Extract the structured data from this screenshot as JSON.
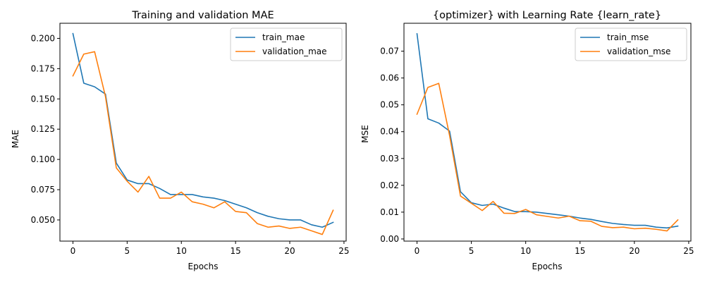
{
  "chart_data": [
    {
      "type": "line",
      "title": "Training and validation MAE",
      "xlabel": "Epochs",
      "ylabel": "MAE",
      "xlim": [
        -1.2,
        25.2
      ],
      "ylim": [
        0.0325,
        0.2125
      ],
      "xticks": [
        0,
        5,
        10,
        15,
        20,
        25
      ],
      "xtick_labels": [
        "0",
        "5",
        "10",
        "15",
        "20",
        "25"
      ],
      "yticks": [
        0.05,
        0.075,
        0.1,
        0.125,
        0.15,
        0.175,
        0.2
      ],
      "ytick_labels": [
        "0.050",
        "0.075",
        "0.100",
        "0.125",
        "0.150",
        "0.175",
        "0.200"
      ],
      "legend_position": "top-right",
      "grid": false,
      "x": [
        0,
        1,
        2,
        3,
        4,
        5,
        6,
        7,
        8,
        9,
        10,
        11,
        12,
        13,
        14,
        15,
        16,
        17,
        18,
        19,
        20,
        21,
        22,
        23,
        24
      ],
      "series": [
        {
          "name": "train_mae",
          "color": "#1f77b4",
          "values": [
            0.204,
            0.163,
            0.16,
            0.154,
            0.097,
            0.083,
            0.08,
            0.08,
            0.076,
            0.071,
            0.071,
            0.071,
            0.069,
            0.068,
            0.066,
            0.063,
            0.06,
            0.056,
            0.053,
            0.051,
            0.05,
            0.05,
            0.046,
            0.044,
            0.048
          ]
        },
        {
          "name": "validation_mae",
          "color": "#ff7f0e",
          "values": [
            0.169,
            0.187,
            0.189,
            0.152,
            0.093,
            0.082,
            0.073,
            0.086,
            0.068,
            0.068,
            0.073,
            0.065,
            0.063,
            0.06,
            0.065,
            0.057,
            0.056,
            0.047,
            0.044,
            0.045,
            0.043,
            0.044,
            0.041,
            0.038,
            0.058
          ]
        }
      ]
    },
    {
      "type": "line",
      "title": "{optimizer} with Learning Rate  {learn_rate}",
      "xlabel": "Epochs",
      "ylabel": "MSE",
      "xlim": [
        -1.2,
        25.2
      ],
      "ylim": [
        -0.0008,
        0.0804
      ],
      "xticks": [
        0,
        5,
        10,
        15,
        20,
        25
      ],
      "xtick_labels": [
        "0",
        "5",
        "10",
        "15",
        "20",
        "25"
      ],
      "yticks": [
        0.0,
        0.01,
        0.02,
        0.03,
        0.04,
        0.05,
        0.06,
        0.07
      ],
      "ytick_labels": [
        "0.00",
        "0.01",
        "0.02",
        "0.03",
        "0.04",
        "0.05",
        "0.06",
        "0.07"
      ],
      "legend_position": "top-right",
      "grid": false,
      "x": [
        0,
        1,
        2,
        3,
        4,
        5,
        6,
        7,
        8,
        9,
        10,
        11,
        12,
        13,
        14,
        15,
        16,
        17,
        18,
        19,
        20,
        21,
        22,
        23,
        24
      ],
      "series": [
        {
          "name": "train_mse",
          "color": "#1f77b4",
          "values": [
            0.0765,
            0.0448,
            0.0432,
            0.0402,
            0.0176,
            0.0135,
            0.0125,
            0.013,
            0.0115,
            0.0102,
            0.0102,
            0.01,
            0.0095,
            0.009,
            0.0085,
            0.0078,
            0.0073,
            0.0065,
            0.0058,
            0.0054,
            0.0051,
            0.0051,
            0.0044,
            0.0041,
            0.0048
          ]
        },
        {
          "name": "validation_mse",
          "color": "#ff7f0e",
          "values": [
            0.0465,
            0.0565,
            0.058,
            0.0385,
            0.016,
            0.0133,
            0.0106,
            0.014,
            0.0096,
            0.0095,
            0.011,
            0.009,
            0.0084,
            0.0078,
            0.0085,
            0.0068,
            0.0066,
            0.0047,
            0.0042,
            0.0044,
            0.0038,
            0.004,
            0.0036,
            0.003,
            0.0071
          ]
        }
      ]
    }
  ]
}
